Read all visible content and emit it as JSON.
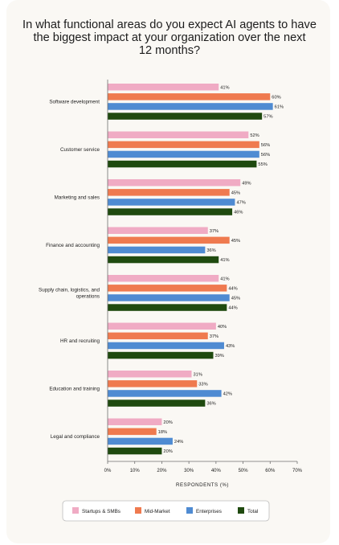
{
  "chart_data": {
    "type": "bar",
    "orientation": "horizontal",
    "title": [
      "In what functional areas do you expect AI agents to have",
      "the biggest impact at your organization over the next",
      "12 months?"
    ],
    "categories": [
      [
        "Software development"
      ],
      [
        "Customer service"
      ],
      [
        "Marketing and sales"
      ],
      [
        "Finance and accounting"
      ],
      [
        "Supply chain, logistics, and",
        "operations"
      ],
      [
        "HR and recruiting"
      ],
      [
        "Education and training"
      ],
      [
        "Legal and compliance"
      ]
    ],
    "series": [
      {
        "name": "Startups & SMBs",
        "color": "#f0abc4",
        "values": [
          41,
          52,
          49,
          37,
          41,
          40,
          31,
          20
        ]
      },
      {
        "name": "Mid-Market",
        "color": "#ef7a4f",
        "values": [
          60,
          56,
          45,
          45,
          44,
          37,
          33,
          18
        ]
      },
      {
        "name": "Enterprises",
        "color": "#4f8bd2",
        "values": [
          61,
          56,
          47,
          36,
          45,
          43,
          42,
          24
        ]
      },
      {
        "name": "Total",
        "color": "#1f4a0f",
        "values": [
          57,
          55,
          46,
          41,
          44,
          39,
          36,
          20
        ]
      }
    ],
    "value_suffix": "%",
    "xlabel": "RESPONDENTS (%)",
    "xlim": [
      0,
      70
    ],
    "xticks": [
      "0%",
      "10%",
      "20%",
      "30%",
      "40%",
      "50%",
      "60%",
      "70%"
    ],
    "grid": false,
    "legend_position": "bottom"
  }
}
